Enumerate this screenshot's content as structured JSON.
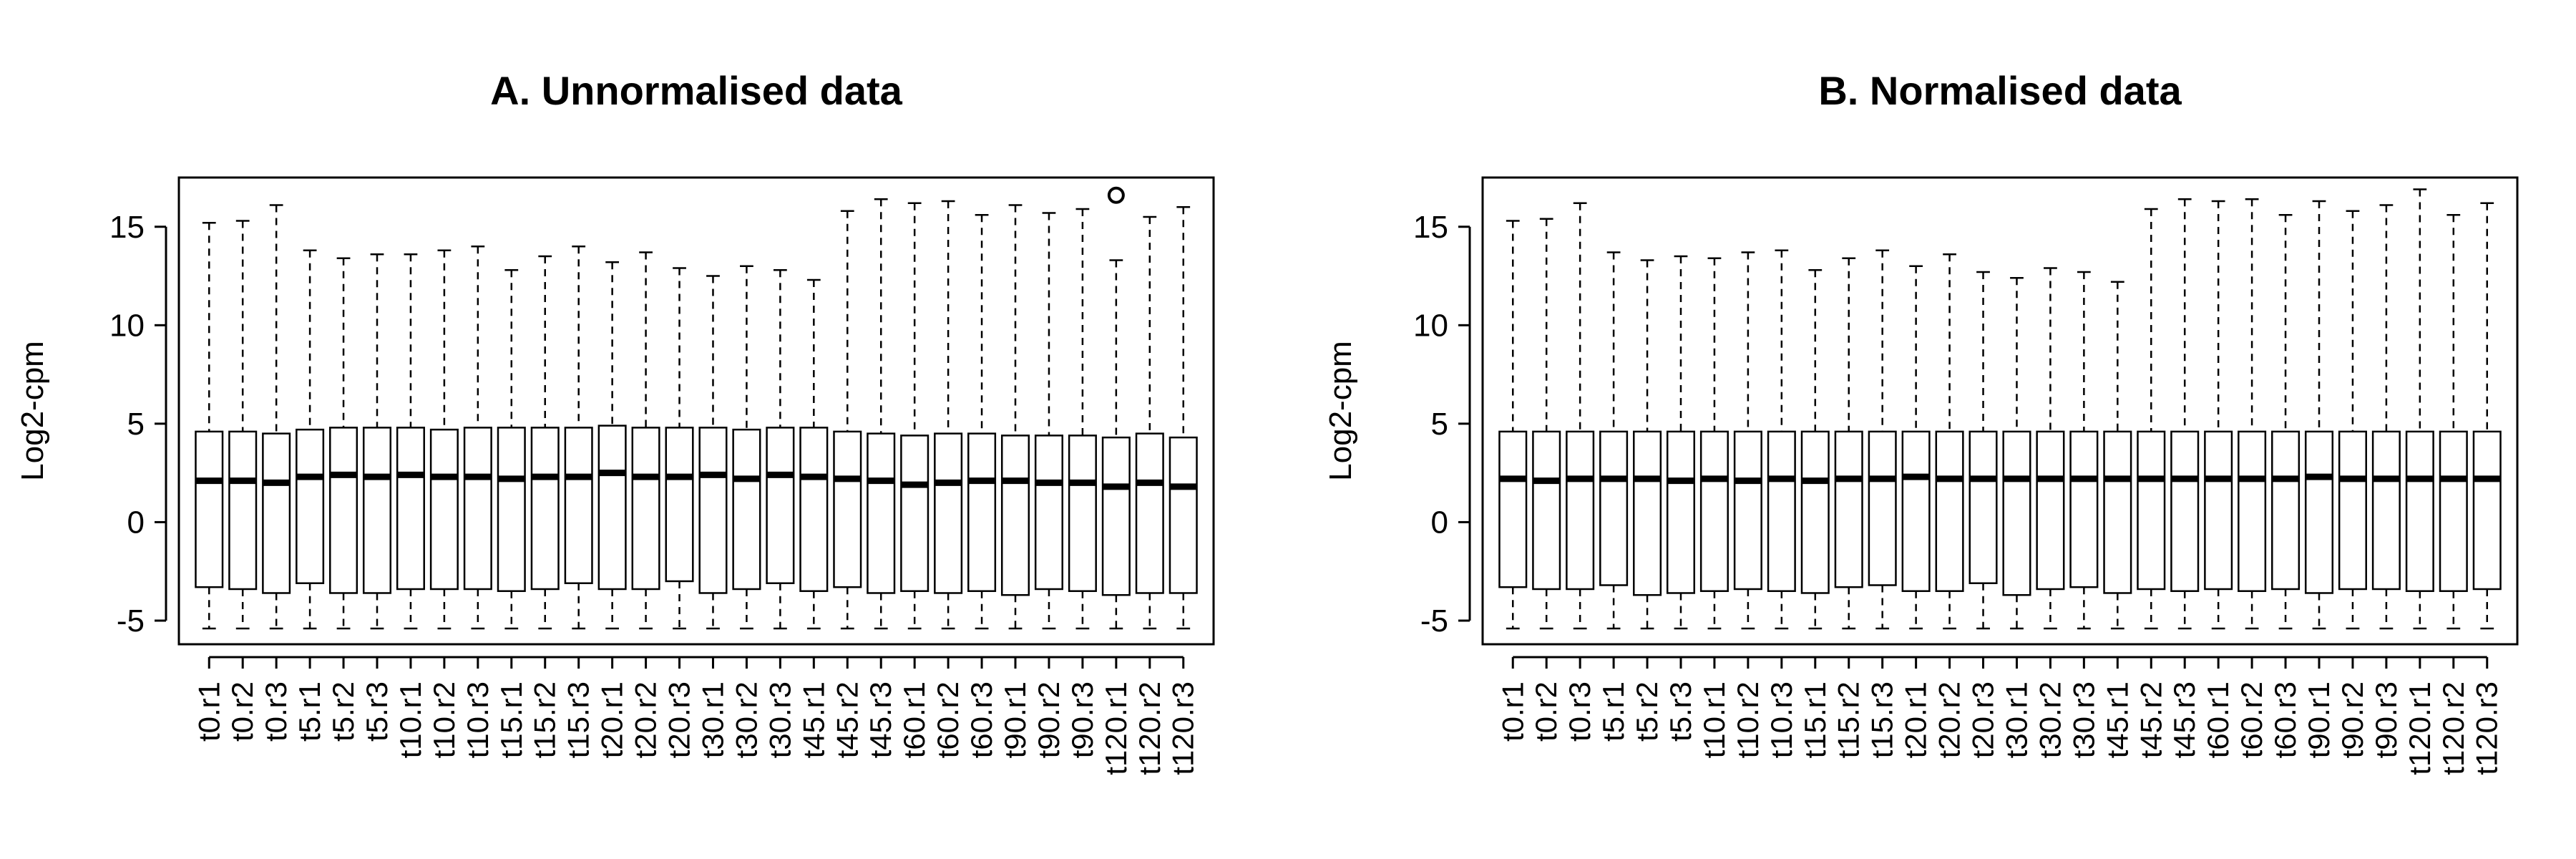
{
  "chart_data": [
    {
      "type": "boxplot",
      "title": "A. Unnormalised data",
      "ylabel": "Log2-cpm",
      "xlabel": "",
      "ylim": [
        -6.2,
        17.5
      ],
      "yticks": [
        -5,
        0,
        5,
        10,
        15
      ],
      "categories": [
        "t0.r1",
        "t0.r2",
        "t0.r3",
        "t5.r1",
        "t5.r2",
        "t5.r3",
        "t10.r1",
        "t10.r2",
        "t10.r3",
        "t15.r1",
        "t15.r2",
        "t15.r3",
        "t20.r1",
        "t20.r2",
        "t20.r3",
        "t30.r1",
        "t30.r2",
        "t30.r3",
        "t45.r1",
        "t45.r2",
        "t45.r3",
        "t60.r1",
        "t60.r2",
        "t60.r3",
        "t90.r1",
        "t90.r2",
        "t90.r3",
        "t120.r1",
        "t120.r2",
        "t120.r3"
      ],
      "stats": {
        "min": [
          -5.4,
          -5.4,
          -5.4,
          -5.4,
          -5.4,
          -5.4,
          -5.4,
          -5.4,
          -5.4,
          -5.4,
          -5.4,
          -5.4,
          -5.4,
          -5.4,
          -5.4,
          -5.4,
          -5.4,
          -5.4,
          -5.4,
          -5.4,
          -5.4,
          -5.4,
          -5.4,
          -5.4,
          -5.4,
          -5.4,
          -5.4,
          -5.4,
          -5.4,
          -5.4
        ],
        "q1": [
          -3.3,
          -3.4,
          -3.6,
          -3.1,
          -3.6,
          -3.6,
          -3.4,
          -3.4,
          -3.4,
          -3.5,
          -3.4,
          -3.1,
          -3.4,
          -3.4,
          -3.0,
          -3.6,
          -3.4,
          -3.1,
          -3.5,
          -3.3,
          -3.6,
          -3.5,
          -3.6,
          -3.5,
          -3.7,
          -3.4,
          -3.5,
          -3.7,
          -3.6,
          -3.6
        ],
        "median": [
          2.1,
          2.1,
          2.0,
          2.3,
          2.4,
          2.3,
          2.4,
          2.3,
          2.3,
          2.2,
          2.3,
          2.3,
          2.5,
          2.3,
          2.3,
          2.4,
          2.2,
          2.4,
          2.3,
          2.2,
          2.1,
          1.9,
          2.0,
          2.1,
          2.1,
          2.0,
          2.0,
          1.8,
          2.0,
          1.8
        ],
        "q3": [
          4.6,
          4.6,
          4.5,
          4.7,
          4.8,
          4.8,
          4.8,
          4.7,
          4.8,
          4.8,
          4.8,
          4.8,
          4.9,
          4.8,
          4.8,
          4.8,
          4.7,
          4.8,
          4.8,
          4.6,
          4.5,
          4.4,
          4.5,
          4.5,
          4.4,
          4.4,
          4.4,
          4.3,
          4.5,
          4.3
        ],
        "max": [
          15.2,
          15.3,
          16.1,
          13.8,
          13.4,
          13.6,
          13.6,
          13.8,
          14.0,
          12.8,
          13.5,
          14.0,
          13.2,
          13.7,
          12.9,
          12.5,
          13.0,
          12.8,
          12.3,
          15.8,
          16.4,
          16.2,
          16.3,
          15.6,
          16.1,
          15.7,
          15.9,
          13.3,
          15.5,
          16.0
        ]
      },
      "outliers": [
        {
          "category": "t120.r1",
          "value": 16.6
        }
      ]
    },
    {
      "type": "boxplot",
      "title": "B. Normalised data",
      "ylabel": "Log2-cpm",
      "xlabel": "",
      "ylim": [
        -6.2,
        17.5
      ],
      "yticks": [
        -5,
        0,
        5,
        10,
        15
      ],
      "categories": [
        "t0.r1",
        "t0.r2",
        "t0.r3",
        "t5.r1",
        "t5.r2",
        "t5.r3",
        "t10.r1",
        "t10.r2",
        "t10.r3",
        "t15.r1",
        "t15.r2",
        "t15.r3",
        "t20.r1",
        "t20.r2",
        "t20.r3",
        "t30.r1",
        "t30.r2",
        "t30.r3",
        "t45.r1",
        "t45.r2",
        "t45.r3",
        "t60.r1",
        "t60.r2",
        "t60.r3",
        "t90.r1",
        "t90.r2",
        "t90.r3",
        "t120.r1",
        "t120.r2",
        "t120.r3"
      ],
      "stats": {
        "min": [
          -5.4,
          -5.4,
          -5.4,
          -5.4,
          -5.4,
          -5.4,
          -5.4,
          -5.4,
          -5.4,
          -5.4,
          -5.4,
          -5.4,
          -5.4,
          -5.4,
          -5.4,
          -5.4,
          -5.4,
          -5.4,
          -5.4,
          -5.4,
          -5.4,
          -5.4,
          -5.4,
          -5.4,
          -5.4,
          -5.4,
          -5.4,
          -5.4,
          -5.4,
          -5.4
        ],
        "q1": [
          -3.3,
          -3.4,
          -3.4,
          -3.2,
          -3.7,
          -3.6,
          -3.5,
          -3.4,
          -3.5,
          -3.6,
          -3.3,
          -3.2,
          -3.5,
          -3.5,
          -3.1,
          -3.7,
          -3.4,
          -3.3,
          -3.6,
          -3.4,
          -3.5,
          -3.4,
          -3.5,
          -3.4,
          -3.6,
          -3.4,
          -3.4,
          -3.5,
          -3.5,
          -3.4
        ],
        "median": [
          2.2,
          2.1,
          2.2,
          2.2,
          2.2,
          2.1,
          2.2,
          2.1,
          2.2,
          2.1,
          2.2,
          2.2,
          2.3,
          2.2,
          2.2,
          2.2,
          2.2,
          2.2,
          2.2,
          2.2,
          2.2,
          2.2,
          2.2,
          2.2,
          2.3,
          2.2,
          2.2,
          2.2,
          2.2,
          2.2
        ],
        "q3": [
          4.6,
          4.6,
          4.6,
          4.6,
          4.6,
          4.6,
          4.6,
          4.6,
          4.6,
          4.6,
          4.6,
          4.6,
          4.6,
          4.6,
          4.6,
          4.6,
          4.6,
          4.6,
          4.6,
          4.6,
          4.6,
          4.6,
          4.6,
          4.6,
          4.6,
          4.6,
          4.6,
          4.6,
          4.6,
          4.6
        ],
        "max": [
          15.3,
          15.4,
          16.2,
          13.7,
          13.3,
          13.5,
          13.4,
          13.7,
          13.8,
          12.8,
          13.4,
          13.8,
          13.0,
          13.6,
          12.7,
          12.4,
          12.9,
          12.7,
          12.2,
          15.9,
          16.4,
          16.3,
          16.4,
          15.6,
          16.3,
          15.8,
          16.1,
          16.9,
          15.6,
          16.2
        ]
      },
      "outliers": []
    }
  ]
}
